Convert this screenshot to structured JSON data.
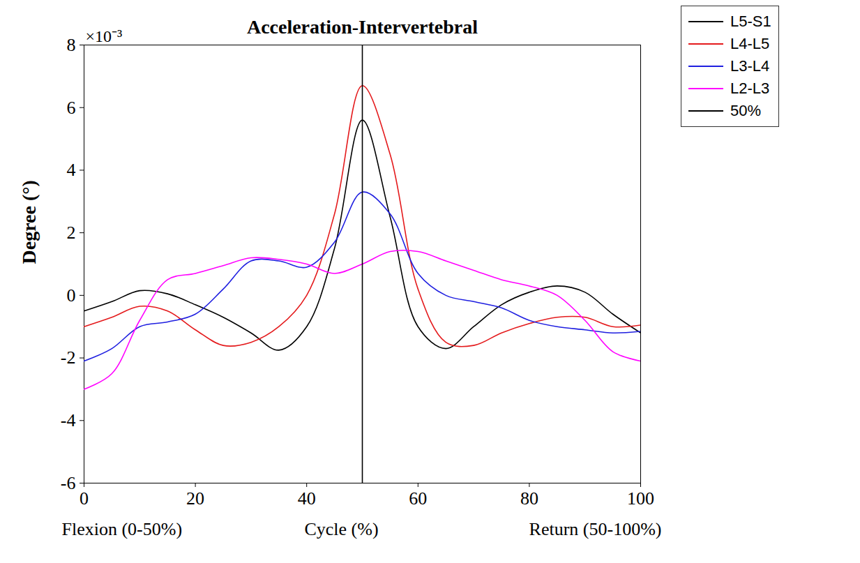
{
  "chart_data": {
    "type": "line",
    "title": "Acceleration-Intervertebral",
    "ylabel": "Degree (°)",
    "y_multiplier": "×10⁻³",
    "xlabel": [
      "Flexion (0-50%)",
      "Cycle (%)",
      "Return (50-100%)"
    ],
    "x": [
      0,
      5,
      10,
      15,
      20,
      25,
      30,
      35,
      40,
      45,
      50,
      55,
      60,
      65,
      70,
      75,
      80,
      85,
      90,
      95,
      100
    ],
    "series": [
      {
        "name": "L5-S1",
        "color": "#000000",
        "values": [
          -0.5,
          -0.2,
          0.15,
          0.05,
          -0.3,
          -0.7,
          -1.2,
          -1.75,
          -1.0,
          1.5,
          5.6,
          2.5,
          -1.0,
          -1.7,
          -1.0,
          -0.3,
          0.1,
          0.3,
          0.1,
          -0.6,
          -1.2
        ]
      },
      {
        "name": "L4-L5",
        "color": "#e41a1c",
        "values": [
          -1.0,
          -0.7,
          -0.35,
          -0.5,
          -1.1,
          -1.6,
          -1.5,
          -1.0,
          0.0,
          2.6,
          6.7,
          4.5,
          0.2,
          -1.5,
          -1.6,
          -1.2,
          -0.9,
          -0.7,
          -0.7,
          -1.0,
          -0.95
        ]
      },
      {
        "name": "L3-L4",
        "color": "#1f1fe0",
        "values": [
          -2.1,
          -1.7,
          -1.0,
          -0.85,
          -0.6,
          0.2,
          1.1,
          1.1,
          0.9,
          1.7,
          3.3,
          2.6,
          0.7,
          0.0,
          -0.2,
          -0.4,
          -0.8,
          -1.0,
          -1.1,
          -1.2,
          -1.15
        ]
      },
      {
        "name": "L2-L3",
        "color": "#ff00ff",
        "values": [
          -3.0,
          -2.5,
          -0.8,
          0.5,
          0.7,
          0.95,
          1.2,
          1.15,
          1.0,
          0.7,
          1.0,
          1.4,
          1.4,
          1.1,
          0.8,
          0.5,
          0.3,
          0.0,
          -0.8,
          -1.8,
          -2.1
        ]
      }
    ],
    "vlines": [
      {
        "x": 50,
        "name": "50%",
        "color": "#000000"
      }
    ],
    "xlim": [
      0,
      100
    ],
    "xticks": [
      0,
      20,
      40,
      60,
      80,
      100
    ],
    "ylim": [
      -6,
      8
    ],
    "yticks": [
      -6,
      -4,
      -2,
      0,
      2,
      4,
      6,
      8
    ],
    "legend": "right",
    "grid": false
  }
}
